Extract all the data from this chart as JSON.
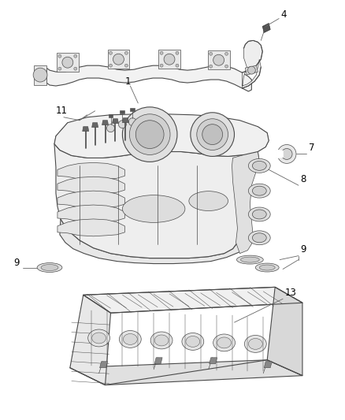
{
  "bg_color": "#ffffff",
  "line_color": "#4a4a4a",
  "label_color": "#000000",
  "figsize": [
    4.38,
    5.33
  ],
  "dpi": 100,
  "label_fontsize": 8.5
}
